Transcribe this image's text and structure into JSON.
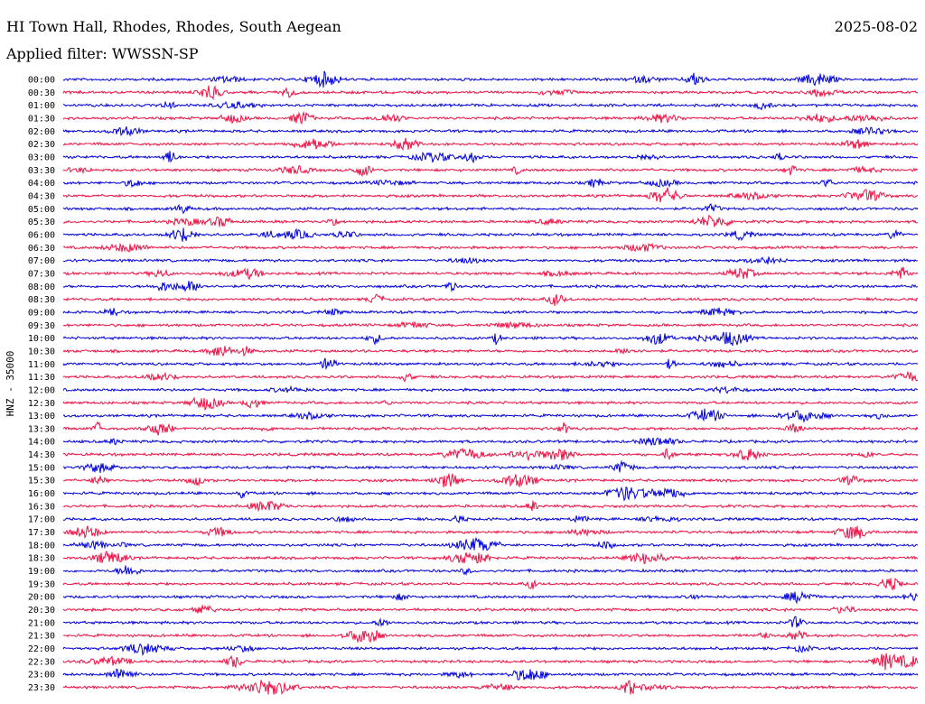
{
  "header": {
    "station": "HI Town Hall, Rhodes, Rhodes, South Aegean",
    "date": "2025-08-02",
    "filter": "Applied filter: WWSSN-SP"
  },
  "colors": {
    "trace_a": "#0000dd",
    "trace_b": "#ee1144"
  },
  "chart_data": {
    "type": "line",
    "title": "HI Town Hall, Rhodes, Rhodes, South Aegean",
    "ylabel": "HNZ - 35000",
    "grid": false,
    "legend": "none",
    "row_labels": [
      "00:00",
      "00:30",
      "01:00",
      "01:30",
      "02:00",
      "02:30",
      "03:00",
      "03:30",
      "04:00",
      "04:30",
      "05:00",
      "05:30",
      "06:00",
      "06:30",
      "07:00",
      "07:30",
      "08:00",
      "08:30",
      "09:00",
      "09:30",
      "10:00",
      "10:30",
      "11:00",
      "11:30",
      "12:00",
      "12:30",
      "13:00",
      "13:30",
      "14:00",
      "14:30",
      "15:00",
      "15:30",
      "16:00",
      "16:30",
      "17:00",
      "17:30",
      "18:00",
      "18:30",
      "19:00",
      "19:30",
      "20:00",
      "20:30",
      "21:00",
      "21:30",
      "22:00",
      "22:30",
      "23:00",
      "23:30"
    ],
    "row_colors": [
      "a",
      "b",
      "a",
      "b",
      "a",
      "b",
      "a",
      "b",
      "a",
      "b",
      "a",
      "b",
      "a",
      "b",
      "a",
      "b",
      "a",
      "b",
      "a",
      "b",
      "a",
      "b",
      "a",
      "b",
      "a",
      "b",
      "a",
      "b",
      "a",
      "b",
      "a",
      "b",
      "a",
      "b",
      "a",
      "b",
      "a",
      "b",
      "a",
      "b",
      "a",
      "b",
      "a",
      "b",
      "a",
      "b",
      "a",
      "b"
    ]
  }
}
